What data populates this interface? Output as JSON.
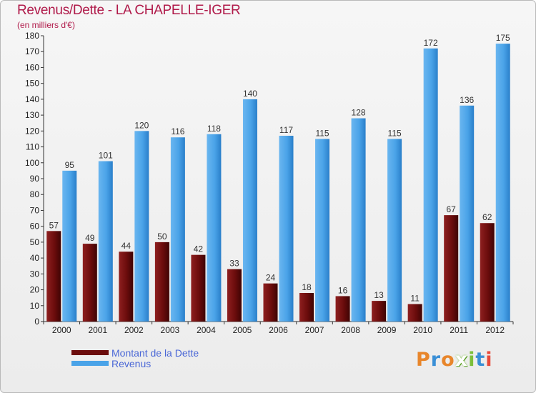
{
  "chart_data": {
    "type": "bar",
    "title": "Revenus/Dette - LA CHAPELLE-IGER",
    "subtitle": "(en milliers d'€)",
    "categories": [
      "2000",
      "2001",
      "2002",
      "2003",
      "2004",
      "2005",
      "2006",
      "2007",
      "2008",
      "2009",
      "2010",
      "2011",
      "2012"
    ],
    "series": [
      {
        "name": "Montant de la Dette",
        "color": "#6b0c0c",
        "values": [
          57,
          49,
          44,
          50,
          42,
          33,
          24,
          18,
          16,
          13,
          11,
          67,
          62
        ]
      },
      {
        "name": "Revenus",
        "color": "#4aa3e8",
        "values": [
          95,
          101,
          120,
          116,
          118,
          140,
          117,
          115,
          128,
          115,
          172,
          136,
          175
        ]
      }
    ],
    "ylim": [
      0,
      180
    ],
    "yticks": [
      0,
      10,
      20,
      30,
      40,
      50,
      60,
      70,
      80,
      90,
      100,
      110,
      120,
      130,
      140,
      150,
      160,
      170,
      180
    ],
    "grid": false,
    "legend_position": "bottom-left"
  },
  "logo": {
    "text": "Proxiti",
    "colors": [
      "#e8862b",
      "#3a8fd6",
      "#e8862b",
      "#ffffff",
      "#7cbf3a",
      "#3a8fd6",
      "#e84a3a"
    ]
  }
}
